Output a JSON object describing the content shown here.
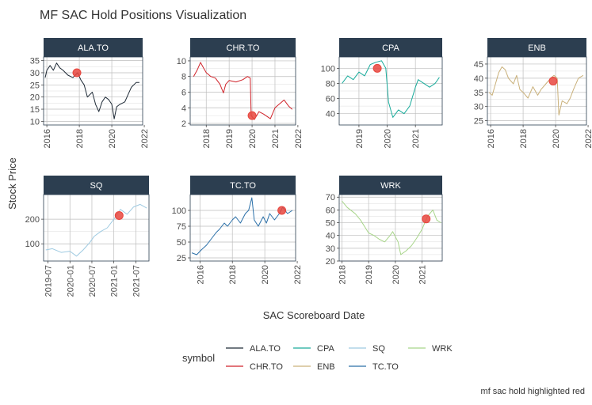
{
  "chart_data": {
    "type": "line",
    "title": "MF SAC Hold Positions Visualization",
    "xlabel": "SAC Scoreboard Date",
    "ylabel": "Stock Price",
    "caption": "mf sac hold highlighted red",
    "legend_title": "symbol",
    "grid": true,
    "highlight_color": "#e8463e",
    "panels": [
      {
        "symbol": "ALA.TO",
        "color": "#1e2a36",
        "xlim": [
          2015.8,
          2021.9
        ],
        "ylim": [
          8.5,
          36.5
        ],
        "xticks": [
          2016,
          2018,
          2020,
          2022
        ],
        "xtick_labels": [
          "2016",
          "2018",
          "2020",
          "2022"
        ],
        "yticks": [
          10,
          15,
          20,
          25,
          30,
          35
        ],
        "ytick_labels": [
          "10",
          "15",
          "20",
          "25",
          "30",
          "35"
        ],
        "series": [
          [
            2015.9,
            28
          ],
          [
            2016.0,
            31
          ],
          [
            2016.2,
            33
          ],
          [
            2016.4,
            31
          ],
          [
            2016.6,
            34
          ],
          [
            2016.8,
            32
          ],
          [
            2017.0,
            31
          ],
          [
            2017.3,
            29
          ],
          [
            2017.6,
            28
          ],
          [
            2017.9,
            30
          ],
          [
            2018.1,
            27
          ],
          [
            2018.3,
            25
          ],
          [
            2018.5,
            20
          ],
          [
            2018.8,
            22
          ],
          [
            2019.0,
            17
          ],
          [
            2019.2,
            14
          ],
          [
            2019.4,
            18
          ],
          [
            2019.6,
            20
          ],
          [
            2019.8,
            19
          ],
          [
            2020.0,
            17
          ],
          [
            2020.15,
            11
          ],
          [
            2020.3,
            16
          ],
          [
            2020.5,
            17
          ],
          [
            2020.8,
            18
          ],
          [
            2021.0,
            21
          ],
          [
            2021.2,
            24
          ],
          [
            2021.5,
            26
          ],
          [
            2021.7,
            26
          ]
        ],
        "highlight": {
          "x": 2017.85,
          "y": 30
        }
      },
      {
        "symbol": "CHR.TO",
        "color": "#d0232a",
        "xlim": [
          2017.3,
          2021.9
        ],
        "ylim": [
          1.8,
          10.5
        ],
        "xticks": [
          2018,
          2019,
          2020,
          2021,
          2022
        ],
        "xtick_labels": [
          "2018",
          "2019",
          "2020",
          "2021",
          "2022"
        ],
        "yticks": [
          2,
          4,
          6,
          8,
          10
        ],
        "ytick_labels": [
          "2",
          "4",
          "6",
          "8",
          "10"
        ],
        "series": [
          [
            2017.45,
            8
          ],
          [
            2017.6,
            8.8
          ],
          [
            2017.75,
            9.8
          ],
          [
            2017.9,
            9
          ],
          [
            2018.0,
            8.5
          ],
          [
            2018.2,
            8
          ],
          [
            2018.4,
            7.8
          ],
          [
            2018.6,
            7
          ],
          [
            2018.75,
            5.9
          ],
          [
            2018.85,
            7
          ],
          [
            2019.0,
            7.5
          ],
          [
            2019.3,
            7.3
          ],
          [
            2019.6,
            7.6
          ],
          [
            2019.8,
            8
          ],
          [
            2019.92,
            7.8
          ],
          [
            2019.96,
            3
          ],
          [
            2020.1,
            2.5
          ],
          [
            2020.3,
            3.5
          ],
          [
            2020.5,
            3.2
          ],
          [
            2020.8,
            2.6
          ],
          [
            2021.0,
            4
          ],
          [
            2021.2,
            4.5
          ],
          [
            2021.4,
            5
          ],
          [
            2021.6,
            4.2
          ],
          [
            2021.75,
            3.8
          ]
        ],
        "highlight": {
          "x": 2020.0,
          "y": 3.0
        }
      },
      {
        "symbol": "CPA",
        "color": "#1aab9b",
        "xlim": [
          2018.3,
          2021.95
        ],
        "ylim": [
          25,
          115
        ],
        "xticks": [
          2019,
          2020,
          2021
        ],
        "xtick_labels": [
          "2019",
          "2020",
          "2021"
        ],
        "yticks": [
          40,
          60,
          80,
          100
        ],
        "ytick_labels": [
          "40",
          "60",
          "80",
          "100"
        ],
        "series": [
          [
            2018.4,
            80
          ],
          [
            2018.6,
            90
          ],
          [
            2018.8,
            85
          ],
          [
            2019.0,
            95
          ],
          [
            2019.2,
            90
          ],
          [
            2019.4,
            105
          ],
          [
            2019.6,
            108
          ],
          [
            2019.8,
            110
          ],
          [
            2019.95,
            100
          ],
          [
            2020.05,
            55
          ],
          [
            2020.2,
            35
          ],
          [
            2020.4,
            45
          ],
          [
            2020.6,
            40
          ],
          [
            2020.8,
            50
          ],
          [
            2021.0,
            75
          ],
          [
            2021.1,
            85
          ],
          [
            2021.3,
            80
          ],
          [
            2021.5,
            75
          ],
          [
            2021.7,
            80
          ],
          [
            2021.85,
            88
          ]
        ],
        "highlight": {
          "x": 2019.65,
          "y": 100
        }
      },
      {
        "symbol": "ENB",
        "color": "#c9b07a",
        "xlim": [
          2015.8,
          2021.9
        ],
        "ylim": [
          23.5,
          47.5
        ],
        "xticks": [
          2016,
          2018,
          2020,
          2022
        ],
        "xtick_labels": [
          "2016",
          "2018",
          "2020",
          "2022"
        ],
        "yticks": [
          25,
          30,
          35,
          40,
          45
        ],
        "ytick_labels": [
          "25",
          "30",
          "35",
          "40",
          "45"
        ],
        "series": [
          [
            2015.9,
            35
          ],
          [
            2016.1,
            34
          ],
          [
            2016.3,
            38
          ],
          [
            2016.5,
            42
          ],
          [
            2016.7,
            44
          ],
          [
            2016.9,
            43
          ],
          [
            2017.1,
            40
          ],
          [
            2017.4,
            38
          ],
          [
            2017.6,
            41
          ],
          [
            2017.8,
            36
          ],
          [
            2018.0,
            35
          ],
          [
            2018.3,
            33
          ],
          [
            2018.6,
            37
          ],
          [
            2018.9,
            34
          ],
          [
            2019.1,
            36
          ],
          [
            2019.4,
            38
          ],
          [
            2019.7,
            40
          ],
          [
            2019.9,
            41
          ],
          [
            2020.1,
            40
          ],
          [
            2020.2,
            27
          ],
          [
            2020.4,
            32
          ],
          [
            2020.7,
            31
          ],
          [
            2020.9,
            33
          ],
          [
            2021.1,
            36
          ],
          [
            2021.4,
            40
          ],
          [
            2021.7,
            41
          ]
        ],
        "highlight": {
          "x": 2019.85,
          "y": 39
        }
      },
      {
        "symbol": "SQ",
        "color": "#9ecae1",
        "xlim": [
          2019.4,
          2021.8
        ],
        "ylim": [
          30,
          300
        ],
        "xticks": [
          2019.5,
          2020.0,
          2020.5,
          2021.0,
          2021.5
        ],
        "xtick_labels": [
          "2019-07",
          "2020-01",
          "2020-07",
          "2021-01",
          "2021-07"
        ],
        "yticks": [
          100,
          200
        ],
        "ytick_labels": [
          "100",
          "200"
        ],
        "series": [
          [
            2019.45,
            75
          ],
          [
            2019.6,
            80
          ],
          [
            2019.8,
            65
          ],
          [
            2020.0,
            70
          ],
          [
            2020.15,
            50
          ],
          [
            2020.3,
            75
          ],
          [
            2020.45,
            105
          ],
          [
            2020.55,
            130
          ],
          [
            2020.7,
            150
          ],
          [
            2020.85,
            165
          ],
          [
            2021.0,
            200
          ],
          [
            2021.15,
            240
          ],
          [
            2021.3,
            220
          ],
          [
            2021.45,
            250
          ],
          [
            2021.6,
            260
          ],
          [
            2021.75,
            245
          ]
        ],
        "highlight": {
          "x": 2021.12,
          "y": 215
        }
      },
      {
        "symbol": "TC.TO",
        "color": "#2a6fa8",
        "xlim": [
          2015.4,
          2021.9
        ],
        "ylim": [
          20,
          125
        ],
        "xticks": [
          2016,
          2018,
          2020,
          2022
        ],
        "xtick_labels": [
          "2016",
          "2018",
          "2020",
          "2022"
        ],
        "yticks": [
          25,
          50,
          75,
          100
        ],
        "ytick_labels": [
          "25",
          "50",
          "75",
          "100"
        ],
        "series": [
          [
            2015.5,
            33
          ],
          [
            2015.8,
            30
          ],
          [
            2016.1,
            38
          ],
          [
            2016.4,
            45
          ],
          [
            2016.7,
            55
          ],
          [
            2017.0,
            65
          ],
          [
            2017.2,
            70
          ],
          [
            2017.5,
            80
          ],
          [
            2017.7,
            75
          ],
          [
            2018.0,
            85
          ],
          [
            2018.2,
            90
          ],
          [
            2018.5,
            80
          ],
          [
            2018.8,
            95
          ],
          [
            2019.0,
            100
          ],
          [
            2019.2,
            120
          ],
          [
            2019.35,
            85
          ],
          [
            2019.6,
            75
          ],
          [
            2019.9,
            90
          ],
          [
            2020.1,
            80
          ],
          [
            2020.3,
            95
          ],
          [
            2020.6,
            85
          ],
          [
            2020.9,
            95
          ],
          [
            2021.1,
            105
          ],
          [
            2021.4,
            95
          ],
          [
            2021.7,
            100
          ]
        ],
        "highlight": {
          "x": 2021.05,
          "y": 100
        }
      },
      {
        "symbol": "WRK",
        "color": "#a8d58a",
        "xlim": [
          2017.9,
          2021.75
        ],
        "ylim": [
          20,
          72
        ],
        "xticks": [
          2018,
          2019,
          2020,
          2021
        ],
        "xtick_labels": [
          "2018",
          "2019",
          "2020",
          "2021"
        ],
        "yticks": [
          20,
          30,
          40,
          50,
          60,
          70
        ],
        "ytick_labels": [
          "20",
          "30",
          "40",
          "50",
          "60",
          "70"
        ],
        "series": [
          [
            2018.0,
            67
          ],
          [
            2018.2,
            62
          ],
          [
            2018.5,
            57
          ],
          [
            2018.7,
            52
          ],
          [
            2019.0,
            42
          ],
          [
            2019.2,
            40
          ],
          [
            2019.4,
            37
          ],
          [
            2019.6,
            35
          ],
          [
            2019.8,
            40
          ],
          [
            2019.9,
            43
          ],
          [
            2020.1,
            35
          ],
          [
            2020.2,
            25
          ],
          [
            2020.4,
            28
          ],
          [
            2020.6,
            32
          ],
          [
            2020.8,
            38
          ],
          [
            2021.0,
            45
          ],
          [
            2021.2,
            55
          ],
          [
            2021.4,
            60
          ],
          [
            2021.55,
            52
          ],
          [
            2021.7,
            50
          ]
        ],
        "highlight": {
          "x": 2021.15,
          "y": 53
        }
      }
    ],
    "legend": [
      {
        "label": "ALA.TO",
        "color": "#1e2a36"
      },
      {
        "label": "CHR.TO",
        "color": "#d0232a"
      },
      {
        "label": "CPA",
        "color": "#1aab9b"
      },
      {
        "label": "ENB",
        "color": "#c9b07a"
      },
      {
        "label": "SQ",
        "color": "#9ecae1"
      },
      {
        "label": "TC.TO",
        "color": "#2a6fa8"
      },
      {
        "label": "WRK",
        "color": "#a8d58a"
      }
    ]
  }
}
